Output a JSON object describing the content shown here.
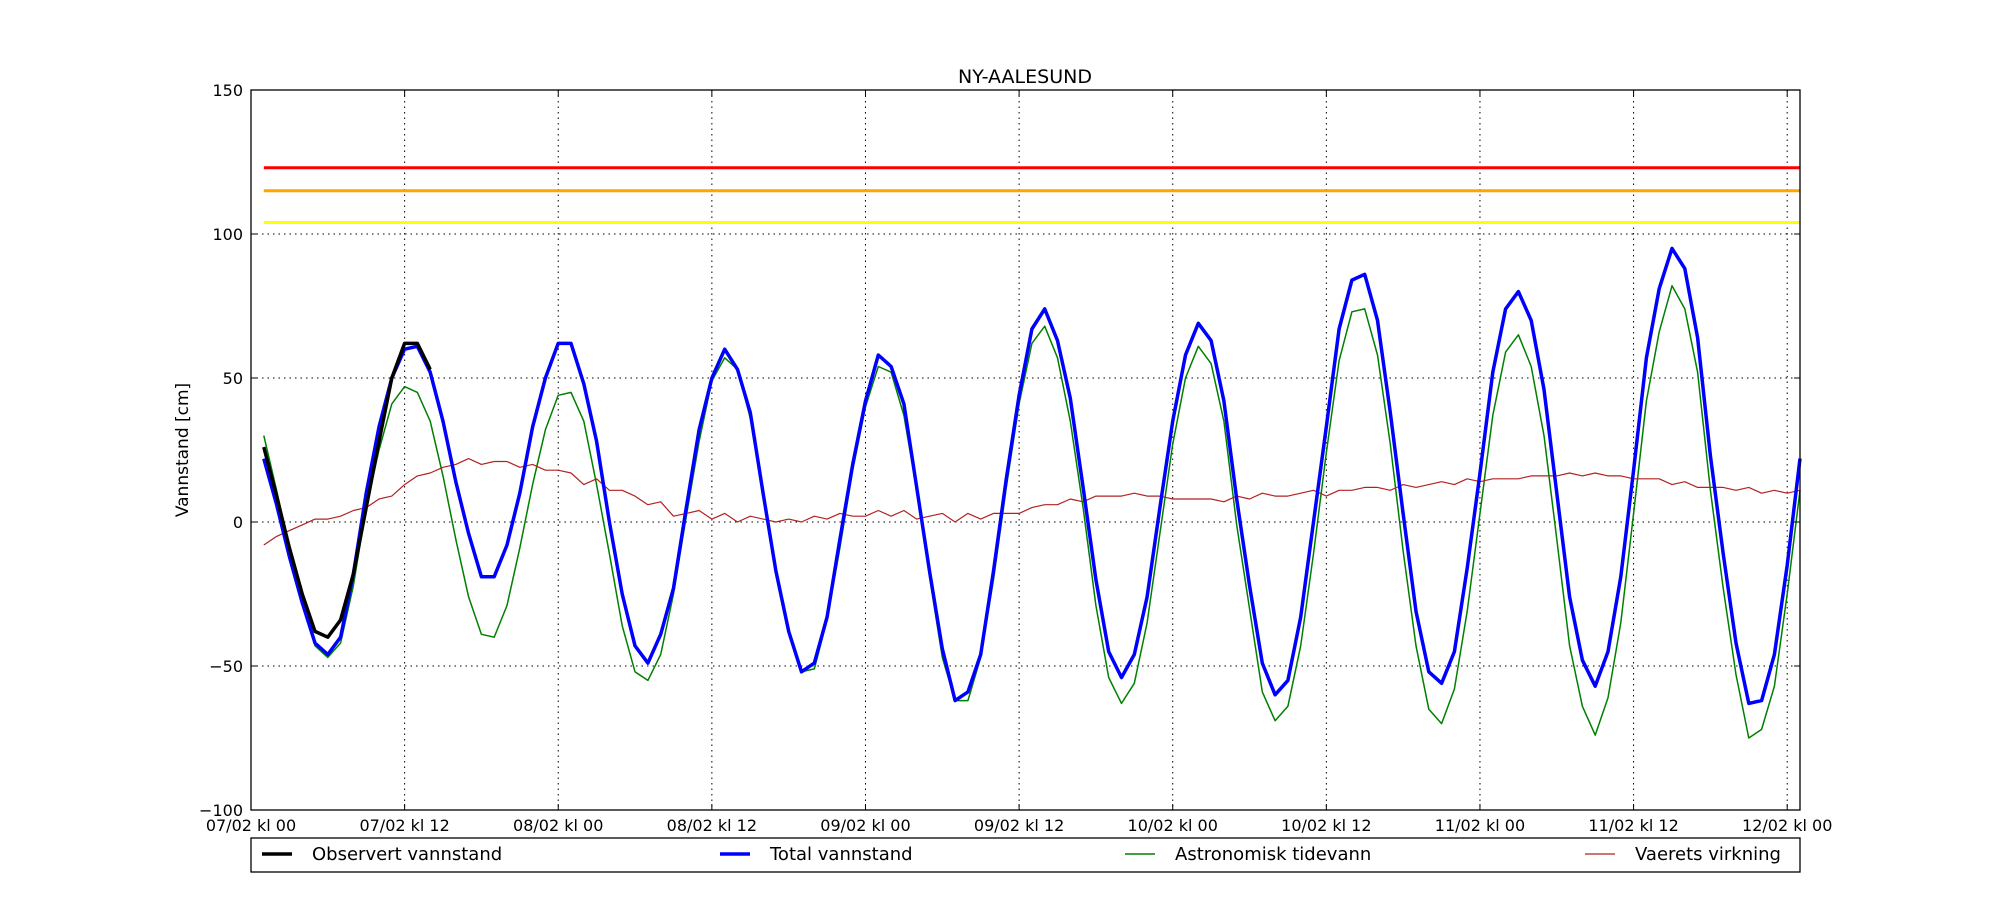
{
  "chart_data": {
    "type": "line",
    "title": "NY-AALESUND",
    "ylabel": "Vannstand [cm]",
    "xlabel": "",
    "ylim": [
      -100,
      150
    ],
    "yticks": [
      -100,
      -50,
      0,
      50,
      100,
      150
    ],
    "xticks": [
      "07/02 kl 00",
      "07/02 kl 12",
      "08/02 kl 00",
      "08/02 kl 12",
      "09/02 kl 00",
      "09/02 kl 12",
      "10/02 kl 00",
      "10/02 kl 12",
      "11/02 kl 00",
      "11/02 kl 12",
      "12/02 kl 00"
    ],
    "x_start": "07/02 kl 01",
    "x_interval_hours": 1,
    "grid": true,
    "legend_position": "below",
    "thresholds": [
      {
        "value": 123,
        "color": "#ff0000"
      },
      {
        "value": 115,
        "color": "#ffa500"
      },
      {
        "value": 104,
        "color": "#ffff00"
      }
    ],
    "series": [
      {
        "name": "Observert vannstand",
        "color": "#000000",
        "values": [
          26,
          9,
          -9,
          -25,
          -38,
          -40,
          -34,
          -18,
          5,
          28,
          50,
          62,
          62,
          53
        ]
      },
      {
        "name": "Total vannstand",
        "color": "#0000ff",
        "values": [
          22,
          6,
          -12,
          -28,
          -42,
          -46,
          -40,
          -18,
          10,
          33,
          50,
          60,
          61,
          52,
          35,
          14,
          -4,
          -19,
          -19,
          -8,
          10,
          33,
          50,
          62,
          62,
          48,
          28,
          0,
          -25,
          -43,
          -49,
          -39,
          -23,
          5,
          32,
          50,
          60,
          53,
          38,
          10,
          -17,
          -38,
          -52,
          -49,
          -33,
          -6,
          20,
          42,
          58,
          54,
          41,
          12,
          -17,
          -44,
          -62,
          -59,
          -46,
          -17,
          15,
          44,
          67,
          74,
          63,
          43,
          12,
          -20,
          -45,
          -54,
          -46,
          -26,
          5,
          35,
          58,
          69,
          63,
          42,
          8,
          -22,
          -49,
          -60,
          -55,
          -33,
          0,
          33,
          67,
          84,
          86,
          70,
          38,
          3,
          -31,
          -52,
          -56,
          -45,
          -16,
          17,
          52,
          74,
          80,
          70,
          46,
          10,
          -26,
          -48,
          -57,
          -45,
          -19,
          18,
          57,
          81,
          95,
          88,
          64,
          23,
          -11,
          -42,
          -63,
          -62,
          -46,
          -15,
          22
        ]
      },
      {
        "name": "Astronomisk tidevann",
        "color": "#008000",
        "values": [
          30,
          11,
          -9,
          -27,
          -43,
          -47,
          -42,
          -22,
          5,
          25,
          41,
          47,
          45,
          35,
          16,
          -6,
          -26,
          -39,
          -40,
          -29,
          -9,
          13,
          32,
          44,
          45,
          35,
          13,
          -11,
          -36,
          -52,
          -55,
          -46,
          -25,
          2,
          28,
          49,
          57,
          53,
          36,
          9,
          -17,
          -39,
          -52,
          -51,
          -34,
          -9,
          18,
          40,
          54,
          52,
          37,
          11,
          -19,
          -47,
          -62,
          -62,
          -47,
          -20,
          12,
          41,
          62,
          68,
          57,
          35,
          5,
          -29,
          -54,
          -63,
          -56,
          -35,
          -4,
          27,
          50,
          61,
          55,
          35,
          -1,
          -30,
          -59,
          -69,
          -64,
          -43,
          -11,
          24,
          56,
          73,
          74,
          58,
          27,
          -10,
          -43,
          -65,
          -70,
          -58,
          -31,
          3,
          37,
          59,
          65,
          54,
          30,
          -6,
          -43,
          -64,
          -74,
          -61,
          -35,
          3,
          42,
          66,
          82,
          74,
          52,
          11,
          -23,
          -53,
          -75,
          -72,
          -57,
          -25,
          11
        ]
      },
      {
        "name": "Vaerets virkning",
        "color": "#b22222",
        "values": [
          -8,
          -5,
          -3,
          -1,
          1,
          1,
          2,
          4,
          5,
          8,
          9,
          13,
          16,
          17,
          19,
          20,
          22,
          20,
          21,
          21,
          19,
          20,
          18,
          18,
          17,
          13,
          15,
          11,
          11,
          9,
          6,
          7,
          2,
          3,
          4,
          1,
          3,
          0,
          2,
          1,
          0,
          1,
          0,
          2,
          1,
          3,
          2,
          2,
          4,
          2,
          4,
          1,
          2,
          3,
          0,
          3,
          1,
          3,
          3,
          3,
          5,
          6,
          6,
          8,
          7,
          9,
          9,
          9,
          10,
          9,
          9,
          8,
          8,
          8,
          8,
          7,
          9,
          8,
          10,
          9,
          9,
          10,
          11,
          9,
          11,
          11,
          12,
          12,
          11,
          13,
          12,
          13,
          14,
          13,
          15,
          14,
          15,
          15,
          15,
          16,
          16,
          16,
          17,
          16,
          17,
          16,
          16,
          15,
          15,
          15,
          13,
          14,
          12,
          12,
          12,
          11,
          12,
          10,
          11,
          10,
          11
        ]
      }
    ]
  }
}
